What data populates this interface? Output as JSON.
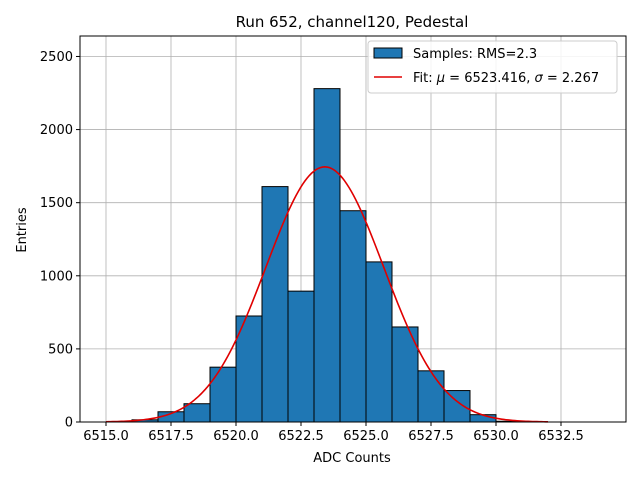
{
  "chart_data": {
    "type": "bar",
    "title": "Run 652, channel120, Pedestal",
    "xlabel": "ADC Counts",
    "ylabel": "Entries",
    "xlim": [
      6514.0,
      6535.0
    ],
    "ylim": [
      0,
      2640
    ],
    "xticks": [
      6515.0,
      6517.5,
      6520.0,
      6522.5,
      6525.0,
      6527.5,
      6530.0,
      6532.5
    ],
    "xtick_labels": [
      "6515.0",
      "6517.5",
      "6520.0",
      "6522.5",
      "6525.0",
      "6527.5",
      "6530.0",
      "6532.5"
    ],
    "yticks": [
      0,
      500,
      1000,
      1500,
      2000,
      2500
    ],
    "ytick_labels": [
      "0",
      "500",
      "1000",
      "1500",
      "2000",
      "2500"
    ],
    "grid": true,
    "legend_position": "top-right",
    "bin_width": 1,
    "bins": [
      {
        "left": 6516,
        "count": 15
      },
      {
        "left": 6517,
        "count": 70
      },
      {
        "left": 6518,
        "count": 125
      },
      {
        "left": 6519,
        "count": 375
      },
      {
        "left": 6520,
        "count": 725
      },
      {
        "left": 6521,
        "count": 1610
      },
      {
        "left": 6522,
        "count": 895
      },
      {
        "left": 6523,
        "count": 2280
      },
      {
        "left": 6524,
        "count": 1445
      },
      {
        "left": 6525,
        "count": 1095
      },
      {
        "left": 6526,
        "count": 650
      },
      {
        "left": 6527,
        "count": 350
      },
      {
        "left": 6528,
        "count": 215
      },
      {
        "left": 6529,
        "count": 50
      },
      {
        "left": 6530,
        "count": 5
      }
    ],
    "fit": {
      "mu": 6523.416,
      "sigma": 2.267,
      "amplitude": 1745,
      "x_range": [
        6515.0,
        6532.0
      ]
    },
    "colors": {
      "histogram": "#1f77b4",
      "fit": "#e00000",
      "grid": "#b0b0b0"
    },
    "legend": {
      "histogram_label": "Samples: RMS=2.3",
      "fit_label_prefix": "Fit: ",
      "fit_mu_symbol": "μ",
      "fit_mu_text": " = 6523.416, ",
      "fit_sigma_symbol": "σ",
      "fit_sigma_text": " = 2.267"
    }
  }
}
